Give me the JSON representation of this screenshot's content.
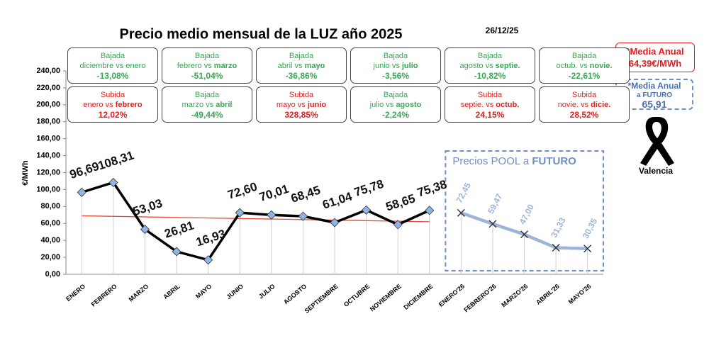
{
  "chart_data": {
    "type": "line",
    "title": "Precio medio mensual de la LUZ año 2025",
    "date": "26/12/25",
    "y_label": "€/MWh",
    "categories": [
      "ENERO",
      "FEBRERO",
      "MARZO",
      "ABRIL",
      "MAYO",
      "JUNIO",
      "JULIO",
      "AGOSTO",
      "SEPTIEMBRE",
      "OCTUBRE",
      "NOVIEMBRE",
      "DICIEMBRE",
      "ENERO'26",
      "FEBRERO'26",
      "MARZO'26",
      "ABRIL'26",
      "MAYO'26"
    ],
    "series": [
      {
        "color": "#000000",
        "marker": "diamond",
        "marker_color": "#8db4e2",
        "values": [
          96.69,
          108.31,
          53.03,
          26.81,
          16.93,
          72.6,
          70.01,
          68.45,
          61.04,
          75.78,
          58.65,
          75.38,
          null,
          null,
          null,
          null,
          null
        ],
        "value_labels": [
          "96,69",
          "108,31",
          "53,03",
          "26,81",
          "16,93",
          "72,60",
          "70,01",
          "68,45",
          "61,04",
          "75,78",
          "58,65",
          "75,38",
          null,
          null,
          null,
          null,
          null
        ]
      },
      {
        "color": "#9cb5d8",
        "marker": "x",
        "marker_color": "#333333",
        "values": [
          null,
          null,
          null,
          null,
          null,
          null,
          null,
          null,
          null,
          null,
          null,
          null,
          72.45,
          59.47,
          47.0,
          31.33,
          30.35
        ],
        "value_labels": [
          null,
          null,
          null,
          null,
          null,
          null,
          null,
          null,
          null,
          null,
          null,
          null,
          "72,45",
          "59,47",
          "47,00",
          "31,33",
          "30,35"
        ]
      }
    ],
    "trendline": {
      "color": "#e8463a",
      "values": [
        69,
        62
      ]
    },
    "future_box": {
      "text": "Precios POOL a",
      "bold": "FUTURO",
      "color": "#6e8fc4"
    },
    "ylim": [
      0,
      240
    ],
    "yticks": [
      {
        "value": 0,
        "label": "0,00"
      },
      {
        "value": 20,
        "label": "20,00"
      },
      {
        "value": 40,
        "label": "40,00"
      },
      {
        "value": 60,
        "label": "60,00"
      },
      {
        "value": 80,
        "label": "80,00"
      },
      {
        "value": 100,
        "label": "100,00"
      },
      {
        "value": 120,
        "label": "120,00"
      },
      {
        "value": 140,
        "label": "140,00"
      },
      {
        "value": 160,
        "label": "160,00"
      },
      {
        "value": 180,
        "label": "180,00"
      },
      {
        "value": 200,
        "label": "200,00"
      },
      {
        "value": 220,
        "label": "220,00"
      },
      {
        "value": 240,
        "label": "240,00"
      }
    ],
    "changes": [
      [
        {
          "kind": "Bajada",
          "from": "diciembre vs",
          "to": "enero",
          "emphasis": false,
          "value": "-13,08%"
        },
        {
          "kind": "Bajada",
          "from": "febrero vs",
          "to": "marzo",
          "emphasis": true,
          "value": "-51,04%"
        },
        {
          "kind": "Bajada",
          "from": "abril vs",
          "to": "mayo",
          "emphasis": true,
          "value": "-36,86%"
        },
        {
          "kind": "Bajada",
          "from": "junio vs",
          "to": "julio",
          "emphasis": true,
          "value": "-3,56%"
        },
        {
          "kind": "Bajada",
          "from": "agosto vs",
          "to": "septie.",
          "emphasis": true,
          "value": "-10,82%"
        },
        {
          "kind": "Bajada",
          "from": "octub. vs",
          "to": "novie.",
          "emphasis": true,
          "value": "-22,61%"
        }
      ],
      [
        {
          "kind": "Subida",
          "from": "enero vs",
          "to": "febrero",
          "emphasis": true,
          "value": "12,02%"
        },
        {
          "kind": "Bajada",
          "from": "marzo vs",
          "to": "abril",
          "emphasis": true,
          "value": "-49,44%"
        },
        {
          "kind": "Subida",
          "from": "mayo vs",
          "to": "junio",
          "emphasis": true,
          "value": "328,85%"
        },
        {
          "kind": "Bajada",
          "from": "julio vs",
          "to": "agosto",
          "emphasis": true,
          "value": "-2,24%"
        },
        {
          "kind": "Subida",
          "from": "septie. vs",
          "to": "octub.",
          "emphasis": true,
          "value": "24,15%"
        },
        {
          "kind": "Subida",
          "from": "novie. vs",
          "to": "dicie.",
          "emphasis": true,
          "value": "28,52%"
        }
      ]
    ],
    "kind_colors": {
      "Bajada": "#3aa655",
      "Subida": "#e02020"
    },
    "annual_average": {
      "label": "*Media Anual",
      "value": "64,39€/MWh"
    },
    "future_average": {
      "label": "*Media Anual",
      "sub": "a FUTURO",
      "value": "65,91"
    },
    "ribbon_label": "Valencia"
  }
}
